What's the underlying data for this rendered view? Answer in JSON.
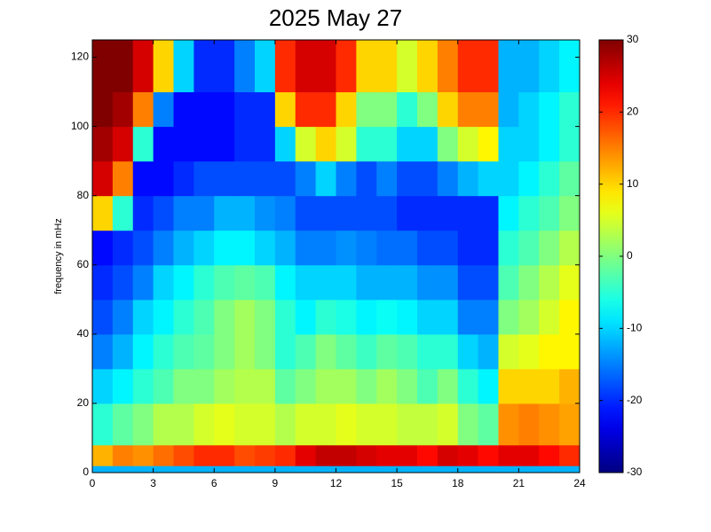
{
  "chart_data": {
    "type": "heatmap",
    "title": "2025 May 27",
    "y_label": "frequency in mHz",
    "x": [
      0,
      1,
      2,
      3,
      4,
      5,
      6,
      7,
      8,
      9,
      10,
      11,
      12,
      13,
      14,
      15,
      16,
      17,
      18,
      19,
      20,
      21,
      22,
      23,
      24
    ],
    "y": [
      0,
      2,
      8,
      20,
      30,
      40,
      50,
      60,
      70,
      80,
      90,
      100,
      110,
      125
    ],
    "values": [
      [
        -12,
        -12,
        -12,
        -12,
        -12,
        -12,
        -12,
        -12,
        -12,
        -12,
        -12,
        -12,
        -12,
        -12,
        -12,
        -12,
        -12,
        -12,
        -12,
        -12,
        -12,
        -12,
        -12,
        -12
      ],
      [
        12,
        15,
        14,
        16,
        18,
        20,
        20,
        18,
        19,
        20,
        24,
        26,
        26,
        25,
        24,
        24,
        22,
        25,
        24,
        22,
        24,
        24,
        22,
        20
      ],
      [
        -5,
        -2,
        0,
        3,
        3,
        5,
        6,
        5,
        5,
        3,
        5,
        5,
        6,
        5,
        5,
        4,
        4,
        5,
        0,
        -2,
        14,
        15,
        14,
        13
      ],
      [
        -10,
        -8,
        -5,
        -3,
        0,
        0,
        2,
        3,
        3,
        -2,
        0,
        2,
        2,
        0,
        2,
        0,
        -3,
        0,
        -5,
        -8,
        10,
        10,
        10,
        12
      ],
      [
        -15,
        -12,
        -8,
        -5,
        -3,
        -2,
        0,
        2,
        0,
        -5,
        -3,
        0,
        -2,
        -4,
        -2,
        -3,
        -5,
        -5,
        -10,
        -12,
        5,
        6,
        8,
        8
      ],
      [
        -18,
        -15,
        -10,
        -8,
        -5,
        -3,
        0,
        2,
        0,
        -5,
        -8,
        -5,
        -6,
        -8,
        -7,
        -8,
        -10,
        -10,
        -15,
        -15,
        0,
        2,
        5,
        8
      ],
      [
        -20,
        -18,
        -15,
        -10,
        -8,
        -5,
        -3,
        -2,
        -3,
        -8,
        -10,
        -10,
        -10,
        -12,
        -12,
        -12,
        -14,
        -14,
        -18,
        -18,
        -3,
        0,
        3,
        6
      ],
      [
        -22,
        -20,
        -18,
        -15,
        -12,
        -10,
        -8,
        -8,
        -10,
        -12,
        -15,
        -15,
        -14,
        -15,
        -16,
        -16,
        -18,
        -18,
        -20,
        -20,
        -5,
        -3,
        0,
        3
      ],
      [
        10,
        -5,
        -20,
        -18,
        -15,
        -15,
        -12,
        -12,
        -14,
        -15,
        -18,
        -18,
        -18,
        -18,
        -18,
        -20,
        -20,
        -20,
        -20,
        -20,
        -8,
        -5,
        -3,
        0
      ],
      [
        25,
        15,
        -22,
        -22,
        -20,
        -18,
        -18,
        -18,
        -18,
        -18,
        -15,
        -10,
        -15,
        -18,
        -15,
        -18,
        -18,
        -15,
        -12,
        -10,
        -10,
        -8,
        -5,
        -2
      ],
      [
        28,
        25,
        -5,
        -22,
        -22,
        -22,
        -22,
        -20,
        -20,
        -10,
        5,
        10,
        5,
        -5,
        -5,
        -10,
        -10,
        0,
        5,
        8,
        -10,
        -10,
        -8,
        -5
      ],
      [
        30,
        28,
        15,
        -15,
        -22,
        -22,
        -22,
        -20,
        -20,
        10,
        20,
        20,
        10,
        0,
        0,
        -5,
        0,
        10,
        15,
        15,
        -12,
        -10,
        -8,
        -5
      ],
      [
        30,
        30,
        25,
        10,
        -10,
        -20,
        -20,
        -15,
        -10,
        20,
        25,
        25,
        20,
        10,
        10,
        5,
        10,
        15,
        20,
        20,
        -12,
        -12,
        -10,
        -8
      ]
    ],
    "xlim": [
      0,
      24
    ],
    "xticks": [
      0,
      3,
      6,
      9,
      12,
      15,
      18,
      21,
      24
    ],
    "ylim": [
      0,
      125
    ],
    "yticks": [
      0,
      20,
      40,
      60,
      80,
      100,
      120
    ],
    "clim": [
      -30,
      30
    ],
    "cticks": [
      -30,
      -20,
      -10,
      0,
      10,
      20,
      30
    ],
    "colormap": "jet"
  }
}
